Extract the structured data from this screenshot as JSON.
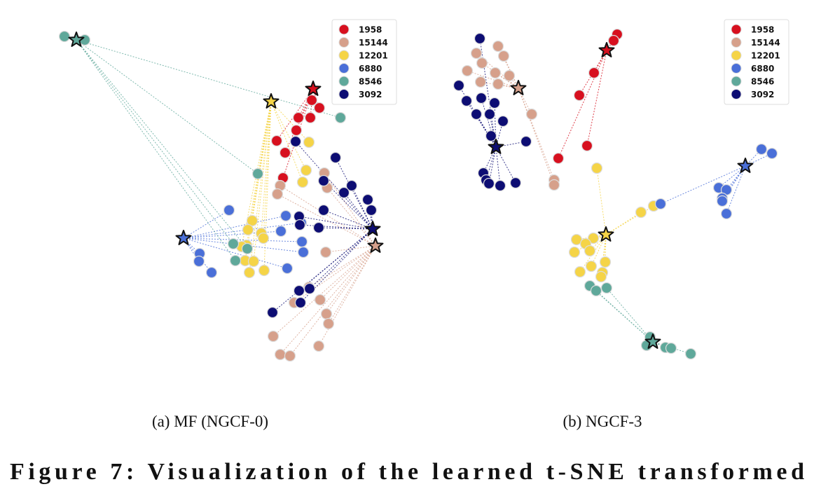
{
  "chart_data": [
    {
      "type": "scatter",
      "title": "(a) MF (NGCF-0)",
      "xlim": [
        0,
        480
      ],
      "ylim": [
        480,
        0
      ],
      "legend": "upper right",
      "series": [
        {
          "name": "1958",
          "color": "#d7101f",
          "user": {
            "x": 367,
            "y": 87
          },
          "x": [
            365,
            376,
            346,
            363,
            315,
            327,
            343,
            324
          ],
          "y": [
            103,
            114,
            128,
            128,
            161,
            178,
            146,
            214
          ]
        },
        {
          "name": "15144",
          "color": "#d6a08b",
          "user": {
            "x": 456,
            "y": 311
          },
          "x": [
            320,
            316,
            383,
            387,
            385,
            361,
            377,
            340,
            386,
            389,
            310,
            320,
            334,
            375
          ],
          "y": [
            225,
            237,
            207,
            228,
            320,
            370,
            388,
            392,
            408,
            422,
            440,
            466,
            468,
            454
          ]
        },
        {
          "name": "12201",
          "color": "#f5d447",
          "user": {
            "x": 307,
            "y": 105
          },
          "x": [
            361,
            357,
            352,
            280,
            274,
            293,
            296,
            272,
            265,
            270,
            282,
            297,
            276
          ],
          "y": [
            163,
            203,
            220,
            275,
            288,
            293,
            300,
            310,
            312,
            332,
            333,
            346,
            349
          ]
        },
        {
          "name": "6880",
          "color": "#4a6fd8",
          "user": {
            "x": 182,
            "y": 300
          },
          "x": [
            247,
            328,
            350,
            321,
            351,
            353,
            330,
            205,
            204,
            222
          ],
          "y": [
            260,
            268,
            278,
            290,
            305,
            320,
            343,
            322,
            333,
            349
          ]
        },
        {
          "name": "8546",
          "color": "#5fa89a",
          "user": {
            "x": 29,
            "y": 17
          },
          "x": [
            12,
            41,
            406,
            288,
            253,
            273,
            256
          ],
          "y": [
            12,
            17,
            128,
            208,
            308,
            315,
            332
          ]
        },
        {
          "name": "3092",
          "color": "#0d0d73",
          "user": {
            "x": 452,
            "y": 287
          },
          "x": [
            342,
            399,
            382,
            422,
            445,
            411,
            450,
            382,
            375,
            347,
            348,
            347,
            349,
            362,
            309
          ],
          "y": [
            162,
            185,
            218,
            225,
            245,
            235,
            260,
            260,
            285,
            269,
            281,
            375,
            392,
            372,
            406
          ]
        }
      ]
    },
    {
      "type": "scatter",
      "title": "(b) NGCF-3",
      "xlim": [
        0,
        480
      ],
      "ylim": [
        480,
        0
      ],
      "legend": "upper right",
      "series": [
        {
          "name": "1958",
          "color": "#d7101f",
          "user": {
            "x": 226,
            "y": 32
          },
          "x": [
            241,
            236,
            208,
            187,
            198,
            157
          ],
          "y": [
            9,
            18,
            64,
            96,
            168,
            186
          ]
        },
        {
          "name": "15144",
          "color": "#d6a08b",
          "user": {
            "x": 100,
            "y": 86
          },
          "x": [
            40,
            71,
            79,
            48,
            27,
            67,
            46,
            71,
            87,
            119,
            151,
            151
          ],
          "y": [
            36,
            26,
            40,
            50,
            61,
            64,
            77,
            80,
            68,
            123,
            217,
            224
          ]
        },
        {
          "name": "12201",
          "color": "#f5d447",
          "user": {
            "x": 225,
            "y": 295
          },
          "x": [
            212,
            293,
            275,
            207,
            183,
            196,
            180,
            202,
            224,
            188,
            204,
            220,
            218
          ],
          "y": [
            200,
            254,
            263,
            300,
            302,
            308,
            320,
            318,
            334,
            348,
            340,
            349,
            355
          ]
        },
        {
          "name": "6880",
          "color": "#4a6fd8",
          "user": {
            "x": 424,
            "y": 197
          },
          "x": [
            447,
            462,
            303,
            386,
            397,
            391,
            391,
            397
          ],
          "y": [
            173,
            179,
            251,
            228,
            231,
            243,
            247,
            265
          ]
        },
        {
          "name": "8546",
          "color": "#5fa89a",
          "user": {
            "x": 292,
            "y": 448
          },
          "x": [
            202,
            211,
            226,
            288,
            283,
            310,
            318,
            346
          ],
          "y": [
            368,
            375,
            371,
            441,
            453,
            456,
            457,
            465
          ]
        },
        {
          "name": "3092",
          "color": "#0d0d73",
          "user": {
            "x": 68,
            "y": 170
          },
          "x": [
            45,
            15,
            26,
            47,
            66,
            40,
            59,
            78,
            61,
            111,
            50,
            54,
            74,
            96,
            58
          ],
          "y": [
            15,
            82,
            104,
            100,
            107,
            123,
            123,
            133,
            154,
            162,
            207,
            217,
            225,
            221,
            222
          ]
        }
      ]
    }
  ],
  "caption": "Figure 7: Visualization of the learned t-SNE transformed"
}
